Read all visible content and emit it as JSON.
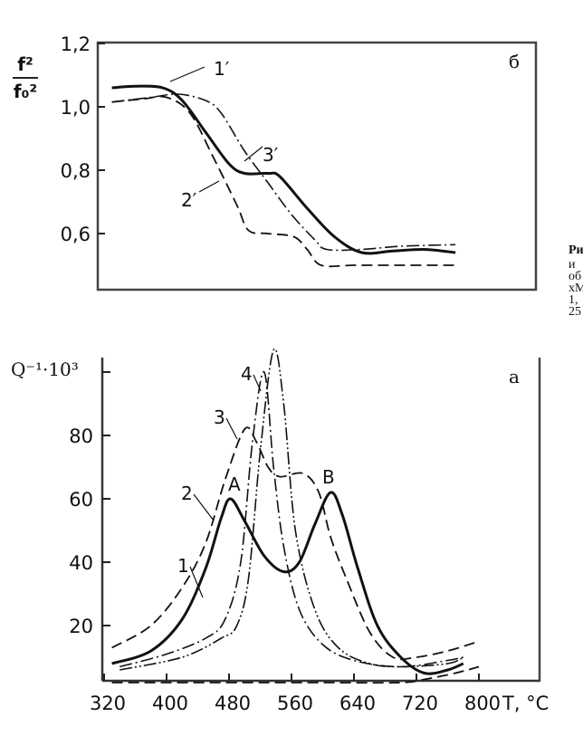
{
  "chart_data": [
    {
      "type": "line",
      "panel_label": "б",
      "ylabel_num": "f²",
      "ylabel_den": "f₀²",
      "xlim": [
        320,
        800
      ],
      "ylim": [
        0.42,
        1.26
      ],
      "yticks": [
        "1,2",
        "1,0",
        "0,8",
        "0,6"
      ],
      "ytick_values": [
        1.2,
        1.0,
        0.8,
        0.6
      ],
      "grid": false,
      "series": [
        {
          "name": "1′",
          "style": "solid",
          "x": [
            330,
            360,
            395,
            420,
            450,
            480,
            500,
            530,
            545,
            580,
            615,
            650,
            690,
            730,
            770
          ],
          "y": [
            1.06,
            1.065,
            1.06,
            1.02,
            0.92,
            0.82,
            0.79,
            0.79,
            0.78,
            0.68,
            0.59,
            0.54,
            0.545,
            0.55,
            0.54
          ]
        },
        {
          "name": "2′",
          "style": "dashed",
          "x": [
            330,
            370,
            400,
            430,
            460,
            490,
            505,
            530,
            563,
            580,
            598,
            640,
            700,
            770
          ],
          "y": [
            1.015,
            1.025,
            1.03,
            0.98,
            0.84,
            0.69,
            0.61,
            0.6,
            0.59,
            0.55,
            0.5,
            0.5,
            0.5,
            0.5
          ]
        },
        {
          "name": "3′",
          "style": "dashdot",
          "x": [
            330,
            380,
            415,
            450,
            470,
            500,
            530,
            560,
            590,
            605,
            650,
            700,
            770
          ],
          "y": [
            1.015,
            1.03,
            1.04,
            1.02,
            0.98,
            0.86,
            0.76,
            0.66,
            0.58,
            0.55,
            0.55,
            0.56,
            0.565
          ]
        }
      ]
    },
    {
      "type": "line",
      "panel_label": "а",
      "ylabel": "Q⁻¹·10³",
      "xlabel": "T, °C",
      "xticks": [
        320,
        400,
        480,
        560,
        640,
        720,
        800
      ],
      "yticks": [
        20,
        40,
        60,
        80
      ],
      "ytick_unlabeled": [
        100
      ],
      "xlim": [
        320,
        800
      ],
      "ylim": [
        0,
        110
      ],
      "grid": false,
      "annotations": [
        "A",
        "B"
      ],
      "series": [
        {
          "name": "1",
          "style": "solid",
          "x": [
            330,
            380,
            420,
            450,
            470,
            482,
            500,
            525,
            550,
            570,
            590,
            610,
            625,
            645,
            670,
            700,
            730,
            760,
            780
          ],
          "y": [
            8,
            12,
            22,
            38,
            54,
            60,
            53,
            42,
            37,
            40,
            52,
            62,
            55,
            38,
            20,
            10,
            5,
            6,
            8
          ]
        },
        {
          "name": "2",
          "style": "dashed",
          "x": [
            330,
            380,
            420,
            450,
            475,
            500,
            515,
            530,
            545,
            575,
            595,
            610,
            630,
            660,
            690,
            720,
            760,
            800
          ],
          "y": [
            13,
            20,
            32,
            46,
            66,
            82,
            78,
            70,
            67,
            68,
            62,
            48,
            35,
            18,
            10,
            10,
            12,
            15
          ]
        },
        {
          "name": "3",
          "style": "dashdot",
          "x": [
            340,
            400,
            450,
            475,
            495,
            510,
            525,
            537,
            550,
            570,
            600,
            640,
            700,
            760,
            780
          ],
          "y": [
            7,
            11,
            16,
            22,
            40,
            78,
            100,
            70,
            45,
            25,
            14,
            9,
            7,
            9,
            10
          ]
        },
        {
          "name": "4",
          "style": "dashdotdot",
          "x": [
            340,
            420,
            470,
            490,
            505,
            520,
            537,
            550,
            565,
            590,
            620,
            660,
            700,
            760,
            780
          ],
          "y": [
            6,
            10,
            16,
            20,
            35,
            75,
            107,
            90,
            50,
            25,
            13,
            8,
            7,
            8,
            10
          ]
        },
        {
          "style": "dashed",
          "x": [
            330,
            400,
            500,
            600,
            700,
            730,
            770,
            800
          ],
          "y": [
            2,
            2,
            2,
            2,
            2,
            3,
            5,
            7
          ]
        }
      ]
    }
  ],
  "caption_fragments": [
    "Ри",
    "и",
    "об",
    "хМ",
    "1,",
    "25"
  ]
}
